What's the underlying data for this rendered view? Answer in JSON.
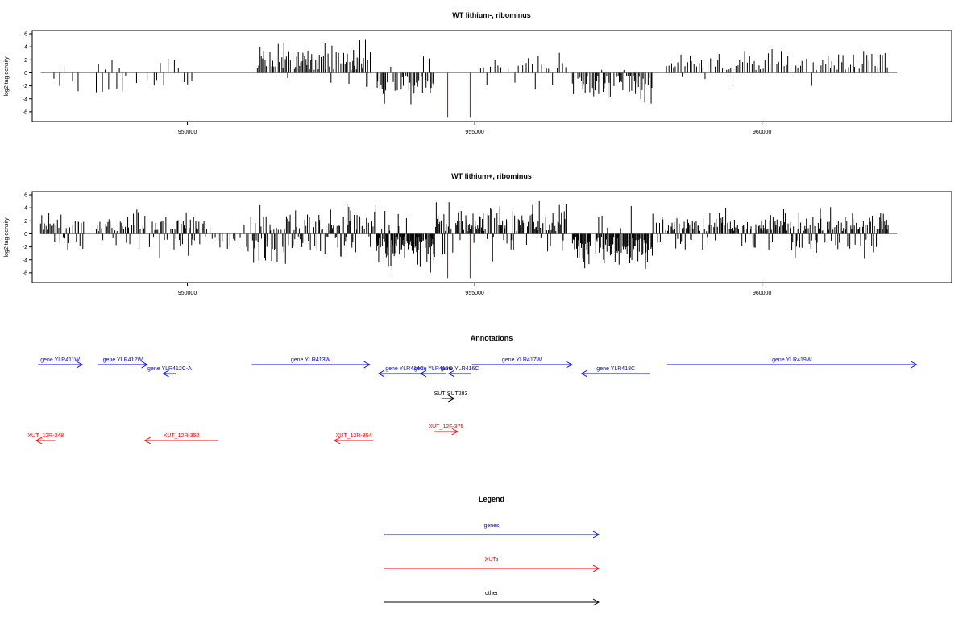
{
  "colors": {
    "gene": "#0000ff",
    "xut": "#ff0000",
    "other": "#000000",
    "axis": "#000000",
    "baseline": "#999999"
  },
  "chart_data": [
    {
      "type": "bar",
      "title": "WT lithium-, ribominus",
      "ylabel": "log2 tag density",
      "xlim": [
        947300,
        963300
      ],
      "ylim": [
        -7.5,
        6.5
      ],
      "yticks": [
        -6,
        -4,
        -2,
        0,
        2,
        4,
        6
      ],
      "xticks": [
        950000,
        955000,
        960000
      ],
      "highlight": {
        "color": "#cc0000",
        "x": [
          954530,
          954920
        ],
        "y": -7.5
      },
      "segments": [
        {
          "from": 947700,
          "to": 948100,
          "sense": 0.25,
          "amp": 2.5,
          "step": 80,
          "seed": 1
        },
        {
          "from": 948400,
          "to": 950100,
          "sense": 0.55,
          "amp": 3.0,
          "step": 60,
          "seed": 2
        },
        {
          "from": 951200,
          "to": 953200,
          "sense": 0.97,
          "amp": 4.5,
          "step": 22,
          "seed": 3
        },
        {
          "from": 952800,
          "to": 953300,
          "sense": 0.5,
          "amp": 2.0,
          "step": 120,
          "seed": 4
        },
        {
          "from": 953300,
          "to": 954300,
          "sense": 0.03,
          "amp": 4.0,
          "step": 22,
          "seed": 5
        },
        {
          "from": 955100,
          "to": 956600,
          "sense": 0.85,
          "amp": 2.5,
          "step": 60,
          "seed": 6
        },
        {
          "from": 956700,
          "to": 958100,
          "sense": 0.03,
          "amp": 3.8,
          "step": 22,
          "seed": 7
        },
        {
          "from": 958300,
          "to": 962200,
          "sense": 0.92,
          "amp": 3.0,
          "step": 40,
          "seed": 8
        }
      ]
    },
    {
      "type": "bar",
      "title": "WT lithium+, ribominus",
      "ylabel": "log2 tag density",
      "xlim": [
        947300,
        963300
      ],
      "ylim": [
        -7.5,
        6.5
      ],
      "yticks": [
        -6,
        -4,
        -2,
        0,
        2,
        4,
        6
      ],
      "xticks": [
        950000,
        955000,
        960000
      ],
      "highlight": {
        "color": "#cc0000",
        "x": [
          954530,
          954920
        ],
        "y": -7.5
      },
      "segments": [
        {
          "from": 947450,
          "to": 948200,
          "sense": 0.7,
          "amp": 3.0,
          "step": 22,
          "seed": 11
        },
        {
          "from": 948400,
          "to": 950300,
          "sense": 0.75,
          "amp": 3.5,
          "step": 18,
          "seed": 12
        },
        {
          "from": 950300,
          "to": 951100,
          "sense": 0.4,
          "amp": 2.5,
          "step": 45,
          "seed": 13
        },
        {
          "from": 951100,
          "to": 953300,
          "sense": 0.55,
          "amp": 4.0,
          "step": 16,
          "seed": 14
        },
        {
          "from": 953300,
          "to": 954300,
          "sense": 0.1,
          "amp": 5.0,
          "step": 10,
          "seed": 15
        },
        {
          "from": 954300,
          "to": 956600,
          "sense": 0.8,
          "amp": 4.0,
          "step": 16,
          "seed": 16
        },
        {
          "from": 956700,
          "to": 958100,
          "sense": 0.05,
          "amp": 4.5,
          "step": 12,
          "seed": 17
        },
        {
          "from": 958100,
          "to": 962200,
          "sense": 0.85,
          "amp": 3.2,
          "step": 16,
          "seed": 18
        }
      ]
    }
  ],
  "annotations": {
    "title": "Annotations",
    "features": [
      {
        "label": "gene YLR411W",
        "kind": "gene",
        "strand": "+",
        "start": 947400,
        "end": 948170,
        "row": 0
      },
      {
        "label": "gene YLR412W",
        "kind": "gene",
        "strand": "+",
        "start": 948450,
        "end": 949300,
        "row": 0
      },
      {
        "label": "gene YLR412C-A",
        "kind": "gene",
        "strand": "-",
        "start": 949580,
        "end": 949800,
        "row": 1
      },
      {
        "label": "gene YLR413W",
        "kind": "gene",
        "strand": "+",
        "start": 951120,
        "end": 953170,
        "row": 0
      },
      {
        "label": "gene YLR414C",
        "kind": "gene",
        "strand": "-",
        "start": 953330,
        "end": 954230,
        "row": 1
      },
      {
        "label": "gene YLR415C",
        "kind": "gene",
        "strand": "-",
        "start": 954060,
        "end": 954500,
        "row": 1
      },
      {
        "label": "gene YLR416C",
        "kind": "gene",
        "strand": "-",
        "start": 954550,
        "end": 954930,
        "row": 1
      },
      {
        "label": "gene YLR417W",
        "kind": "gene",
        "strand": "+",
        "start": 954950,
        "end": 956690,
        "row": 0
      },
      {
        "label": "gene YLR418C",
        "kind": "gene",
        "strand": "-",
        "start": 956860,
        "end": 958050,
        "row": 1
      },
      {
        "label": "gene YLR419W",
        "kind": "gene",
        "strand": "+",
        "start": 958350,
        "end": 962690,
        "row": 0
      },
      {
        "label": "SUT",
        "kind": "other",
        "strand": "+",
        "start": 954420,
        "end": 954640,
        "row": 3
      },
      {
        "label": "SUT283",
        "kind": "other",
        "strand": "+",
        "start": 954420,
        "end": 954640,
        "row": 3
      },
      {
        "label": "XUT_12R-348",
        "kind": "xut",
        "strand": "-",
        "start": 947370,
        "end": 947700,
        "row": 6
      },
      {
        "label": "XUT_12R-352",
        "kind": "xut",
        "strand": "-",
        "start": 949260,
        "end": 950530,
        "row": 6
      },
      {
        "label": "XUT_12R-354",
        "kind": "xut",
        "strand": "-",
        "start": 952560,
        "end": 953230,
        "row": 6
      },
      {
        "label": "XUT_12F-375",
        "kind": "xut",
        "strand": "+",
        "start": 954300,
        "end": 954700,
        "row": 5
      }
    ]
  },
  "legend": {
    "title": "Legend",
    "items": [
      {
        "label": "genes",
        "kind": "gene"
      },
      {
        "label": "XUTs",
        "kind": "xut"
      },
      {
        "label": "other",
        "kind": "other"
      }
    ]
  }
}
